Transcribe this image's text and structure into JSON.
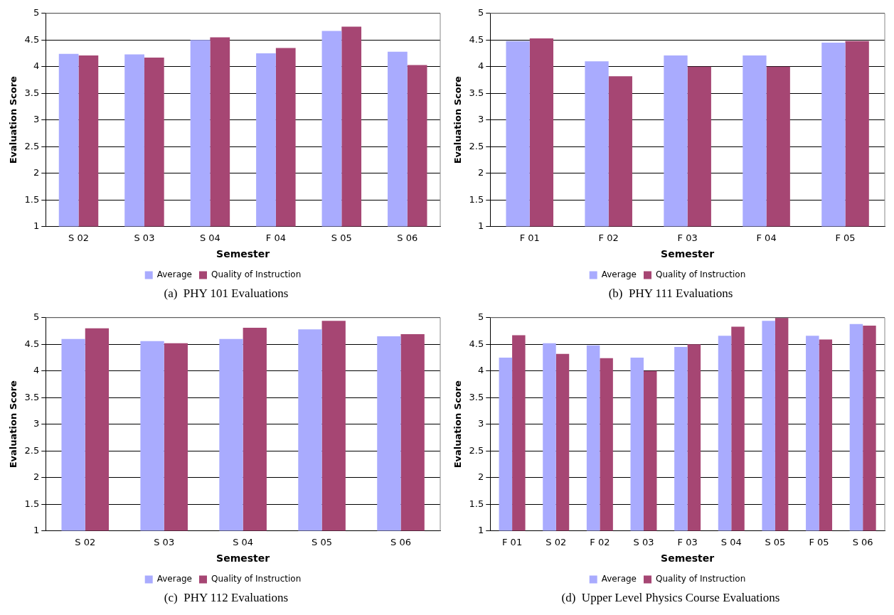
{
  "chart_data": [
    {
      "type": "bar",
      "xlabel": "Semester",
      "ylabel": "Evaluation Score",
      "categories": [
        "S 02",
        "S 03",
        "S 04",
        "F 04",
        "S 05",
        "S 06"
      ],
      "series": [
        {
          "name": "Average",
          "color": "#a9abfe",
          "values": [
            4.24,
            4.23,
            4.5,
            4.25,
            4.67,
            4.28
          ]
        },
        {
          "name": "Quality of Instruction",
          "color": "#a64673",
          "values": [
            4.21,
            4.17,
            4.55,
            4.35,
            4.75,
            4.03
          ]
        }
      ],
      "ylim": [
        1,
        5
      ],
      "yticks": [
        1,
        1.5,
        2,
        2.5,
        3,
        3.5,
        4,
        4.5,
        5
      ],
      "grid": "y",
      "legend": "bottom",
      "annotations": [
        "(a)  PHY 101 Evaluations"
      ]
    },
    {
      "type": "bar",
      "xlabel": "Semester",
      "ylabel": "Evaluation Score",
      "categories": [
        "F 01",
        "F 02",
        "F 03",
        "F 04",
        "F 05"
      ],
      "series": [
        {
          "name": "Average",
          "color": "#a9abfe",
          "values": [
            4.48,
            4.1,
            4.21,
            4.21,
            4.45
          ]
        },
        {
          "name": "Quality of Instruction",
          "color": "#a64673",
          "values": [
            4.53,
            3.82,
            4.0,
            4.0,
            4.48
          ]
        }
      ],
      "ylim": [
        1,
        5
      ],
      "yticks": [
        1,
        1.5,
        2,
        2.5,
        3,
        3.5,
        4,
        4.5,
        5
      ],
      "grid": "y",
      "legend": "bottom",
      "annotations": [
        "(b)  PHY 111 Evaluations"
      ]
    },
    {
      "type": "bar",
      "xlabel": "Semester",
      "ylabel": "Evaluation Score",
      "categories": [
        "S 02",
        "S 03",
        "S 04",
        "S 05",
        "S 06"
      ],
      "series": [
        {
          "name": "Average",
          "color": "#a9abfe",
          "values": [
            4.6,
            4.56,
            4.6,
            4.78,
            4.65
          ]
        },
        {
          "name": "Quality of Instruction",
          "color": "#a64673",
          "values": [
            4.8,
            4.52,
            4.81,
            4.94,
            4.69
          ]
        }
      ],
      "ylim": [
        1,
        5
      ],
      "yticks": [
        1,
        1.5,
        2,
        2.5,
        3,
        3.5,
        4,
        4.5,
        5
      ],
      "grid": "y",
      "legend": "bottom",
      "annotations": [
        "(c)  PHY 112 Evaluations"
      ]
    },
    {
      "type": "bar",
      "xlabel": "Semester",
      "ylabel": "Evaluation Score",
      "categories": [
        "F 01",
        "S 02",
        "F 02",
        "S 03",
        "F 03",
        "S 04",
        "S 05",
        "F 05",
        "S 06"
      ],
      "series": [
        {
          "name": "Average",
          "color": "#a9abfe",
          "values": [
            4.25,
            4.52,
            4.48,
            4.25,
            4.45,
            4.66,
            4.94,
            4.66,
            4.88
          ]
        },
        {
          "name": "Quality of Instruction",
          "color": "#a64673",
          "values": [
            4.67,
            4.32,
            4.24,
            4.0,
            4.5,
            4.83,
            5.0,
            4.59,
            4.85
          ]
        }
      ],
      "ylim": [
        1,
        5
      ],
      "yticks": [
        1,
        1.5,
        2,
        2.5,
        3,
        3.5,
        4,
        4.5,
        5
      ],
      "grid": "y",
      "legend": "bottom",
      "annotations": [
        "(d)  Upper Level Physics Course Evaluations"
      ]
    }
  ]
}
